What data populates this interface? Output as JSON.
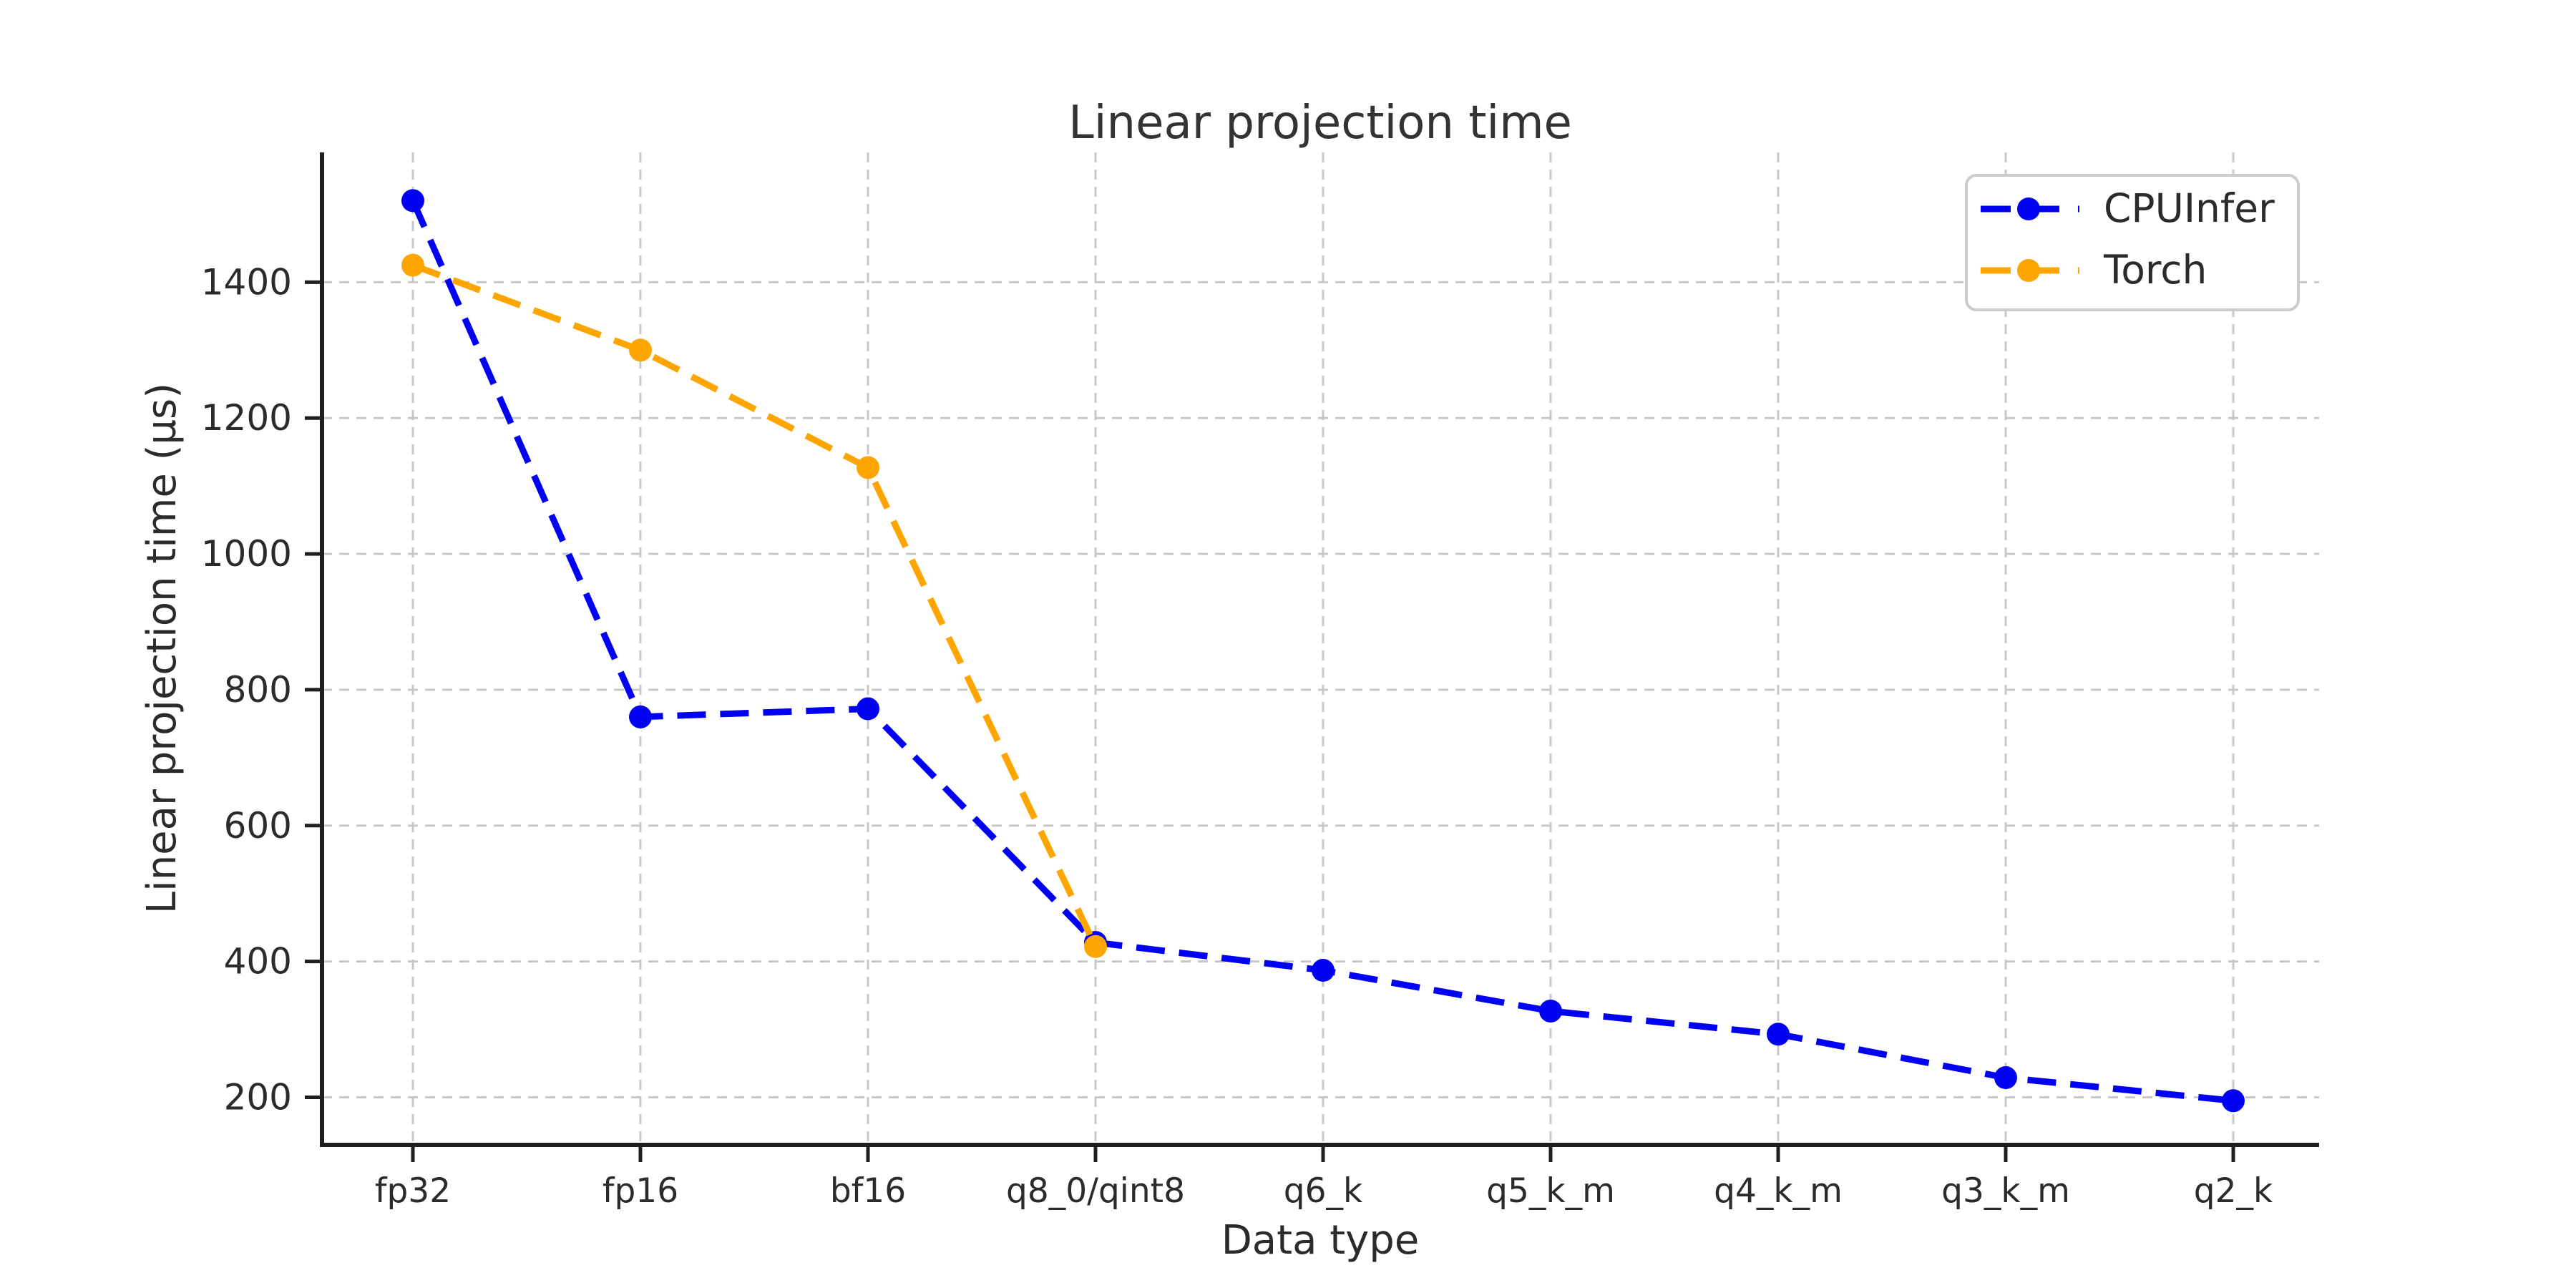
{
  "figure": {
    "background": "#ffffff"
  },
  "chart_data": {
    "type": "line",
    "title": "Linear projection time",
    "xlabel": "Data type",
    "ylabel": "Linear projection time (µs)",
    "categories": [
      "fp32",
      "fp16",
      "bf16",
      "q8_0/qint8",
      "q6_k",
      "q5_k_m",
      "q4_k_m",
      "q3_k_m",
      "q2_k"
    ],
    "series": [
      {
        "name": "CPUInfer",
        "color": "#0000f5",
        "linestyle": "dashed",
        "marker": "circle",
        "values": [
          1520,
          760,
          772,
          428,
          387,
          327,
          293,
          229,
          195
        ]
      },
      {
        "name": "Torch",
        "color": "#ffa500",
        "linestyle": "dashed",
        "marker": "circle",
        "values": [
          1425,
          1300,
          1127,
          422
        ]
      }
    ],
    "yticks": [
      200,
      400,
      600,
      800,
      1000,
      1200,
      1400
    ],
    "ylim": [
      130,
      1591
    ],
    "grid": true,
    "grid_color": "#c6c6c6",
    "axis_color": "#1f1f1f",
    "text_color": "#2b2b2b",
    "legend_position": "upper right",
    "legend_border_color": "#cccccc"
  }
}
